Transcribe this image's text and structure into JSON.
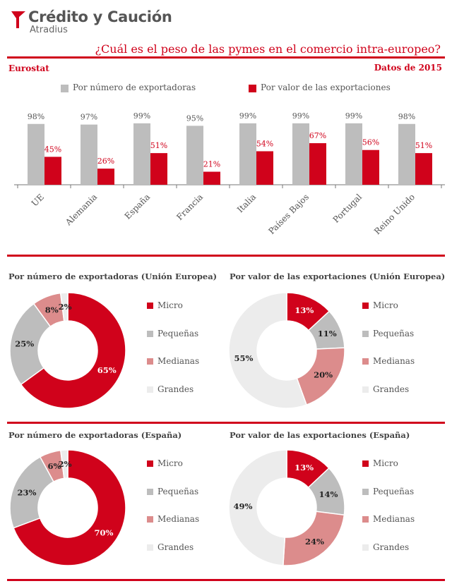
{
  "header": {
    "brand": "Crédito y Caución",
    "brand_sub": "Atradius",
    "title": "¿Cuál es el peso de las pymes en el comercio intra-europeo?",
    "source": "Eurostat",
    "date": "Datos de 2015"
  },
  "colors": {
    "red": "#d0021b",
    "gray": "#bdbdbd",
    "pink": "#dc8c8c",
    "light": "#ececec"
  },
  "chart_data": [
    {
      "type": "bar",
      "categories": [
        "UE",
        "Alemania",
        "España",
        "Francia",
        "Italia",
        "Países Bajos",
        "Portugal",
        "Reino Unido"
      ],
      "series": [
        {
          "name": "Por número de exportadoras",
          "values": [
            98,
            97,
            99,
            95,
            99,
            99,
            99,
            98
          ],
          "labels": [
            "98%",
            "97%",
            "99%",
            "95%",
            "99%",
            "99%",
            "99%",
            "98%"
          ]
        },
        {
          "name": "Por valor de las exportaciones",
          "values": [
            45,
            26,
            51,
            21,
            54,
            67,
            56,
            51
          ],
          "labels": [
            "45%",
            "26%",
            "51%",
            "21%",
            "54%",
            "67%",
            "56%",
            "51%"
          ]
        }
      ],
      "ylim": [
        0,
        100
      ]
    },
    {
      "type": "pie",
      "title": "Por número de exportadoras (Unión Europea)",
      "categories": [
        "Micro",
        "Pequeñas",
        "Medianas",
        "Grandes"
      ],
      "values": [
        65,
        25,
        8,
        2
      ],
      "labels": [
        "65%",
        "25%",
        "8%",
        "2%"
      ]
    },
    {
      "type": "pie",
      "title": "Por valor de las exportaciones (Unión Europea)",
      "categories": [
        "Micro",
        "Pequeñas",
        "Medianas",
        "Grandes"
      ],
      "values": [
        13,
        11,
        20,
        55
      ],
      "labels": [
        "13%",
        "11%",
        "20%",
        "55%"
      ]
    },
    {
      "type": "pie",
      "title": "Por número de exportadoras (España)",
      "categories": [
        "Micro",
        "Pequeñas",
        "Medianas",
        "Grandes"
      ],
      "values": [
        70,
        23,
        6,
        2
      ],
      "labels": [
        "70%",
        "23%",
        "6%",
        "2%"
      ]
    },
    {
      "type": "pie",
      "title": "Por valor de las exportaciones (España)",
      "categories": [
        "Micro",
        "Pequeñas",
        "Medianas",
        "Grandes"
      ],
      "values": [
        13,
        14,
        24,
        49
      ],
      "labels": [
        "13%",
        "14%",
        "24%",
        "49%"
      ]
    }
  ]
}
